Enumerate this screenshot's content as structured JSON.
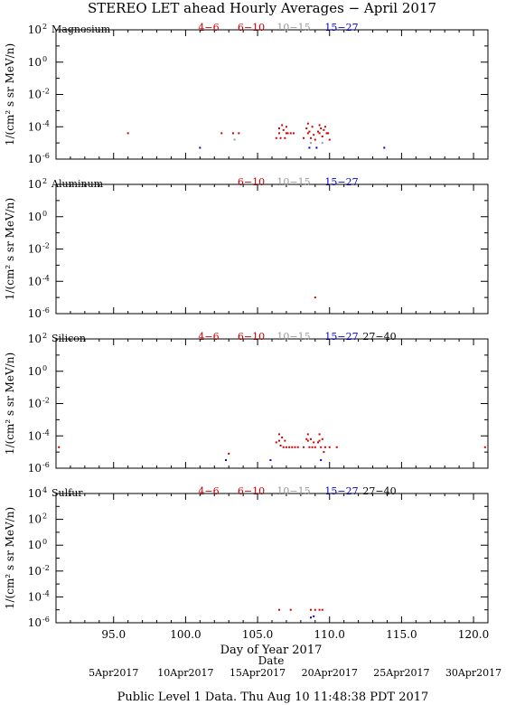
{
  "title": "STEREO LET ahead Hourly Averages − April 2017",
  "footer": "Public Level 1 Data. Thu Aug 10 11:48:38 PDT 2017",
  "x_axis_label": "Day of Year 2017",
  "date_axis_label": "Date",
  "date_ticks": [
    {
      "label": "5Apr2017",
      "day": 95
    },
    {
      "label": "10Apr2017",
      "day": 100
    },
    {
      "label": "15Apr2017",
      "day": 105
    },
    {
      "label": "20Apr2017",
      "day": 110
    },
    {
      "label": "25Apr2017",
      "day": 115
    },
    {
      "label": "30Apr2017",
      "day": 120
    }
  ],
  "colors": {
    "e4_6": "#cc0000",
    "e6_10": "#cc0000",
    "e10_15": "#999999",
    "e15_27": "#0000cc",
    "e27_40": "#000000"
  },
  "chart_data": [
    {
      "type": "scatter",
      "element": "Magnesium",
      "ylabel": "1/(cm² s sr MeV/n)",
      "xlabel": "",
      "xlim": [
        91,
        121
      ],
      "ylim": [
        -6,
        2
      ],
      "ytick_exponents": [
        -6,
        -4,
        -2,
        0,
        2
      ],
      "xticks": [
        95,
        100,
        105,
        110,
        115,
        120
      ],
      "legend": [
        {
          "label": "4−6",
          "color": "#cc0000"
        },
        {
          "label": "6−10",
          "color": "#cc0000"
        },
        {
          "label": "10−15",
          "color": "#999999"
        },
        {
          "label": "15−27",
          "color": "#0000cc"
        }
      ],
      "series": [
        {
          "key": "4-6",
          "color": "#cc0000",
          "points": [
            [
              96.0,
              -4.4
            ],
            [
              102.5,
              -4.4
            ],
            [
              103.3,
              -4.4
            ],
            [
              103.7,
              -4.4
            ],
            [
              106.5,
              -4.4
            ],
            [
              107.0,
              -4.4
            ],
            [
              108.5,
              -4.4
            ],
            [
              109.3,
              -4.4
            ],
            [
              109.8,
              -4.4
            ]
          ]
        },
        {
          "key": "6-10",
          "color": "#cc0000",
          "points": [
            [
              106.3,
              -4.7
            ],
            [
              106.5,
              -4.1
            ],
            [
              106.6,
              -4.7
            ],
            [
              106.7,
              -3.9
            ],
            [
              106.8,
              -4.2
            ],
            [
              106.9,
              -4.7
            ],
            [
              107.0,
              -4.0
            ],
            [
              107.1,
              -4.4
            ],
            [
              107.3,
              -4.4
            ],
            [
              107.5,
              -4.4
            ],
            [
              108.2,
              -4.7
            ],
            [
              108.4,
              -4.1
            ],
            [
              108.5,
              -3.8
            ],
            [
              108.6,
              -4.3
            ],
            [
              108.7,
              -4.7
            ],
            [
              108.8,
              -4.0
            ],
            [
              108.9,
              -4.5
            ],
            [
              109.0,
              -4.8
            ],
            [
              109.2,
              -4.3
            ],
            [
              109.3,
              -3.9
            ],
            [
              109.4,
              -4.1
            ],
            [
              109.5,
              -4.6
            ],
            [
              109.6,
              -4.2
            ],
            [
              109.7,
              -4.0
            ],
            [
              109.9,
              -4.4
            ],
            [
              110.0,
              -4.8
            ]
          ]
        },
        {
          "key": "10-15",
          "color": "#999999",
          "points": [
            [
              103.4,
              -4.8
            ],
            [
              108.7,
              -5.0
            ],
            [
              109.5,
              -5.0
            ]
          ]
        },
        {
          "key": "15-27",
          "color": "#0000cc",
          "points": [
            [
              101.0,
              -5.3
            ],
            [
              108.6,
              -5.3
            ],
            [
              109.1,
              -5.3
            ],
            [
              113.8,
              -5.3
            ]
          ]
        }
      ]
    },
    {
      "type": "scatter",
      "element": "Aluminum",
      "ylabel": "1/(cm² s sr MeV/n)",
      "xlabel": "",
      "xlim": [
        91,
        121
      ],
      "ylim": [
        -6,
        2
      ],
      "ytick_exponents": [
        -6,
        -4,
        -2,
        0,
        2
      ],
      "xticks": [
        95,
        100,
        105,
        110,
        115,
        120
      ],
      "legend": [
        {
          "label": "6−10",
          "color": "#cc0000"
        },
        {
          "label": "10−15",
          "color": "#999999"
        },
        {
          "label": "15−27",
          "color": "#0000cc"
        }
      ],
      "series": [
        {
          "key": "6-10",
          "color": "#cc0000",
          "points": [
            [
              109.0,
              -5.0
            ]
          ]
        }
      ]
    },
    {
      "type": "scatter",
      "element": "Silicon",
      "ylabel": "1/(cm² s sr MeV/n)",
      "xlabel": "",
      "xlim": [
        91,
        121
      ],
      "ylim": [
        -6,
        2
      ],
      "ytick_exponents": [
        -6,
        -4,
        -2,
        0,
        2
      ],
      "xticks": [
        95,
        100,
        105,
        110,
        115,
        120
      ],
      "legend": [
        {
          "label": "4−6",
          "color": "#cc0000"
        },
        {
          "label": "6−10",
          "color": "#cc0000"
        },
        {
          "label": "10−15",
          "color": "#999999"
        },
        {
          "label": "15−27",
          "color": "#0000cc"
        },
        {
          "label": "27−40",
          "color": "#000000"
        }
      ],
      "series": [
        {
          "key": "4-6",
          "color": "#cc0000",
          "points": [
            [
              91.2,
              -4.7
            ],
            [
              103.0,
              -5.1
            ],
            [
              106.5,
              -4.3
            ],
            [
              108.5,
              -4.3
            ],
            [
              109.3,
              -4.3
            ],
            [
              120.8,
              -4.7
            ]
          ]
        },
        {
          "key": "6-10",
          "color": "#cc0000",
          "points": [
            [
              106.3,
              -4.4
            ],
            [
              106.5,
              -3.9
            ],
            [
              106.6,
              -4.6
            ],
            [
              106.7,
              -4.1
            ],
            [
              106.8,
              -4.7
            ],
            [
              106.9,
              -4.3
            ],
            [
              107.0,
              -4.7
            ],
            [
              107.2,
              -4.7
            ],
            [
              107.4,
              -4.7
            ],
            [
              107.6,
              -4.7
            ],
            [
              107.8,
              -4.7
            ],
            [
              108.2,
              -4.7
            ],
            [
              108.4,
              -4.2
            ],
            [
              108.5,
              -3.9
            ],
            [
              108.6,
              -4.7
            ],
            [
              108.7,
              -4.2
            ],
            [
              108.8,
              -4.7
            ],
            [
              108.9,
              -4.4
            ],
            [
              109.0,
              -4.7
            ],
            [
              109.2,
              -4.4
            ],
            [
              109.3,
              -3.9
            ],
            [
              109.4,
              -4.7
            ],
            [
              109.5,
              -4.2
            ],
            [
              109.6,
              -5.0
            ],
            [
              109.7,
              -4.7
            ],
            [
              110.0,
              -4.7
            ],
            [
              110.5,
              -4.7
            ]
          ]
        },
        {
          "key": "15-27",
          "color": "#0000cc",
          "points": [
            [
              102.8,
              -5.5
            ],
            [
              105.9,
              -5.5
            ],
            [
              109.4,
              -5.5
            ]
          ]
        }
      ]
    },
    {
      "type": "scatter",
      "element": "Sulfur",
      "ylabel": "1/(cm² s sr MeV/n)",
      "xlabel": "Day of Year 2017",
      "xlim": [
        91,
        121
      ],
      "ylim": [
        -6,
        4
      ],
      "ytick_exponents": [
        -6,
        -4,
        -2,
        0,
        2,
        4
      ],
      "xticks": [
        95,
        100,
        105,
        110,
        115,
        120
      ],
      "legend": [
        {
          "label": "4−6",
          "color": "#cc0000"
        },
        {
          "label": "6−10",
          "color": "#cc0000"
        },
        {
          "label": "10−15",
          "color": "#999999"
        },
        {
          "label": "15−27",
          "color": "#0000cc"
        },
        {
          "label": "27−40",
          "color": "#000000"
        }
      ],
      "series": [
        {
          "key": "6-10",
          "color": "#cc0000",
          "points": [
            [
              106.5,
              -5.0
            ],
            [
              107.3,
              -5.0
            ],
            [
              108.7,
              -5.0
            ],
            [
              109.0,
              -5.0
            ],
            [
              109.3,
              -5.0
            ],
            [
              109.5,
              -5.0
            ]
          ]
        },
        {
          "key": "15-27",
          "color": "#0000cc",
          "points": [
            [
              108.7,
              -5.6
            ],
            [
              108.9,
              -5.5
            ]
          ]
        }
      ]
    }
  ]
}
